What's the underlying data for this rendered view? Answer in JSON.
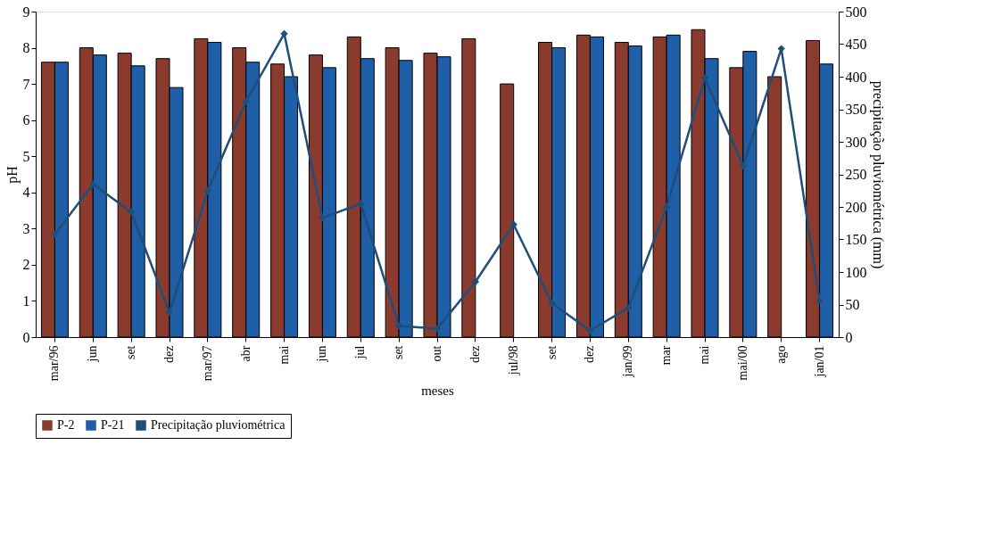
{
  "chart_data": {
    "type": "bar",
    "xlabel": "meses",
    "ylabel": "pH",
    "y2label": "precipitação pluviométrica (mm)",
    "categories": [
      "mar/96",
      "jun",
      "set",
      "dez",
      "mar/97",
      "abr",
      "mai",
      "jun",
      "jul",
      "set",
      "out",
      "dez",
      "jul/98",
      "set",
      "dez",
      "jan/99",
      "mar",
      "mai",
      "mai/00",
      "ago",
      "jan/01"
    ],
    "series": [
      {
        "name": "P-2",
        "color": "#8b3a2e",
        "values": [
          7.6,
          8.0,
          7.85,
          7.7,
          8.25,
          8.0,
          7.55,
          7.8,
          8.3,
          8.0,
          7.85,
          8.25,
          7.0,
          8.15,
          8.35,
          8.15,
          8.3,
          8.5,
          7.45,
          7.2,
          8.2
        ]
      },
      {
        "name": "P-21",
        "color": "#1f5fa8",
        "values": [
          7.6,
          7.8,
          7.5,
          6.9,
          8.15,
          7.6,
          7.2,
          7.45,
          7.7,
          7.65,
          7.75,
          null,
          null,
          8.0,
          8.3,
          8.05,
          8.35,
          7.7,
          7.9,
          null,
          7.55
        ]
      },
      {
        "name": "Precipitação pluviométrica",
        "type": "line",
        "axis": "y2",
        "color": "#1f4e79",
        "marker": "diamond",
        "values": [
          158,
          235,
          192,
          38,
          225,
          362,
          466,
          183,
          205,
          17,
          13,
          85,
          173,
          52,
          10,
          45,
          200,
          398,
          263,
          443,
          55
        ]
      }
    ],
    "ylim": [
      0,
      9
    ],
    "yticks": [
      0,
      1,
      2,
      3,
      4,
      5,
      6,
      7,
      8,
      9
    ],
    "y2lim": [
      0,
      500
    ],
    "y2ticks": [
      0,
      50,
      100,
      150,
      200,
      250,
      300,
      350,
      400,
      450,
      500
    ],
    "grid": false,
    "legend": "bottom"
  }
}
